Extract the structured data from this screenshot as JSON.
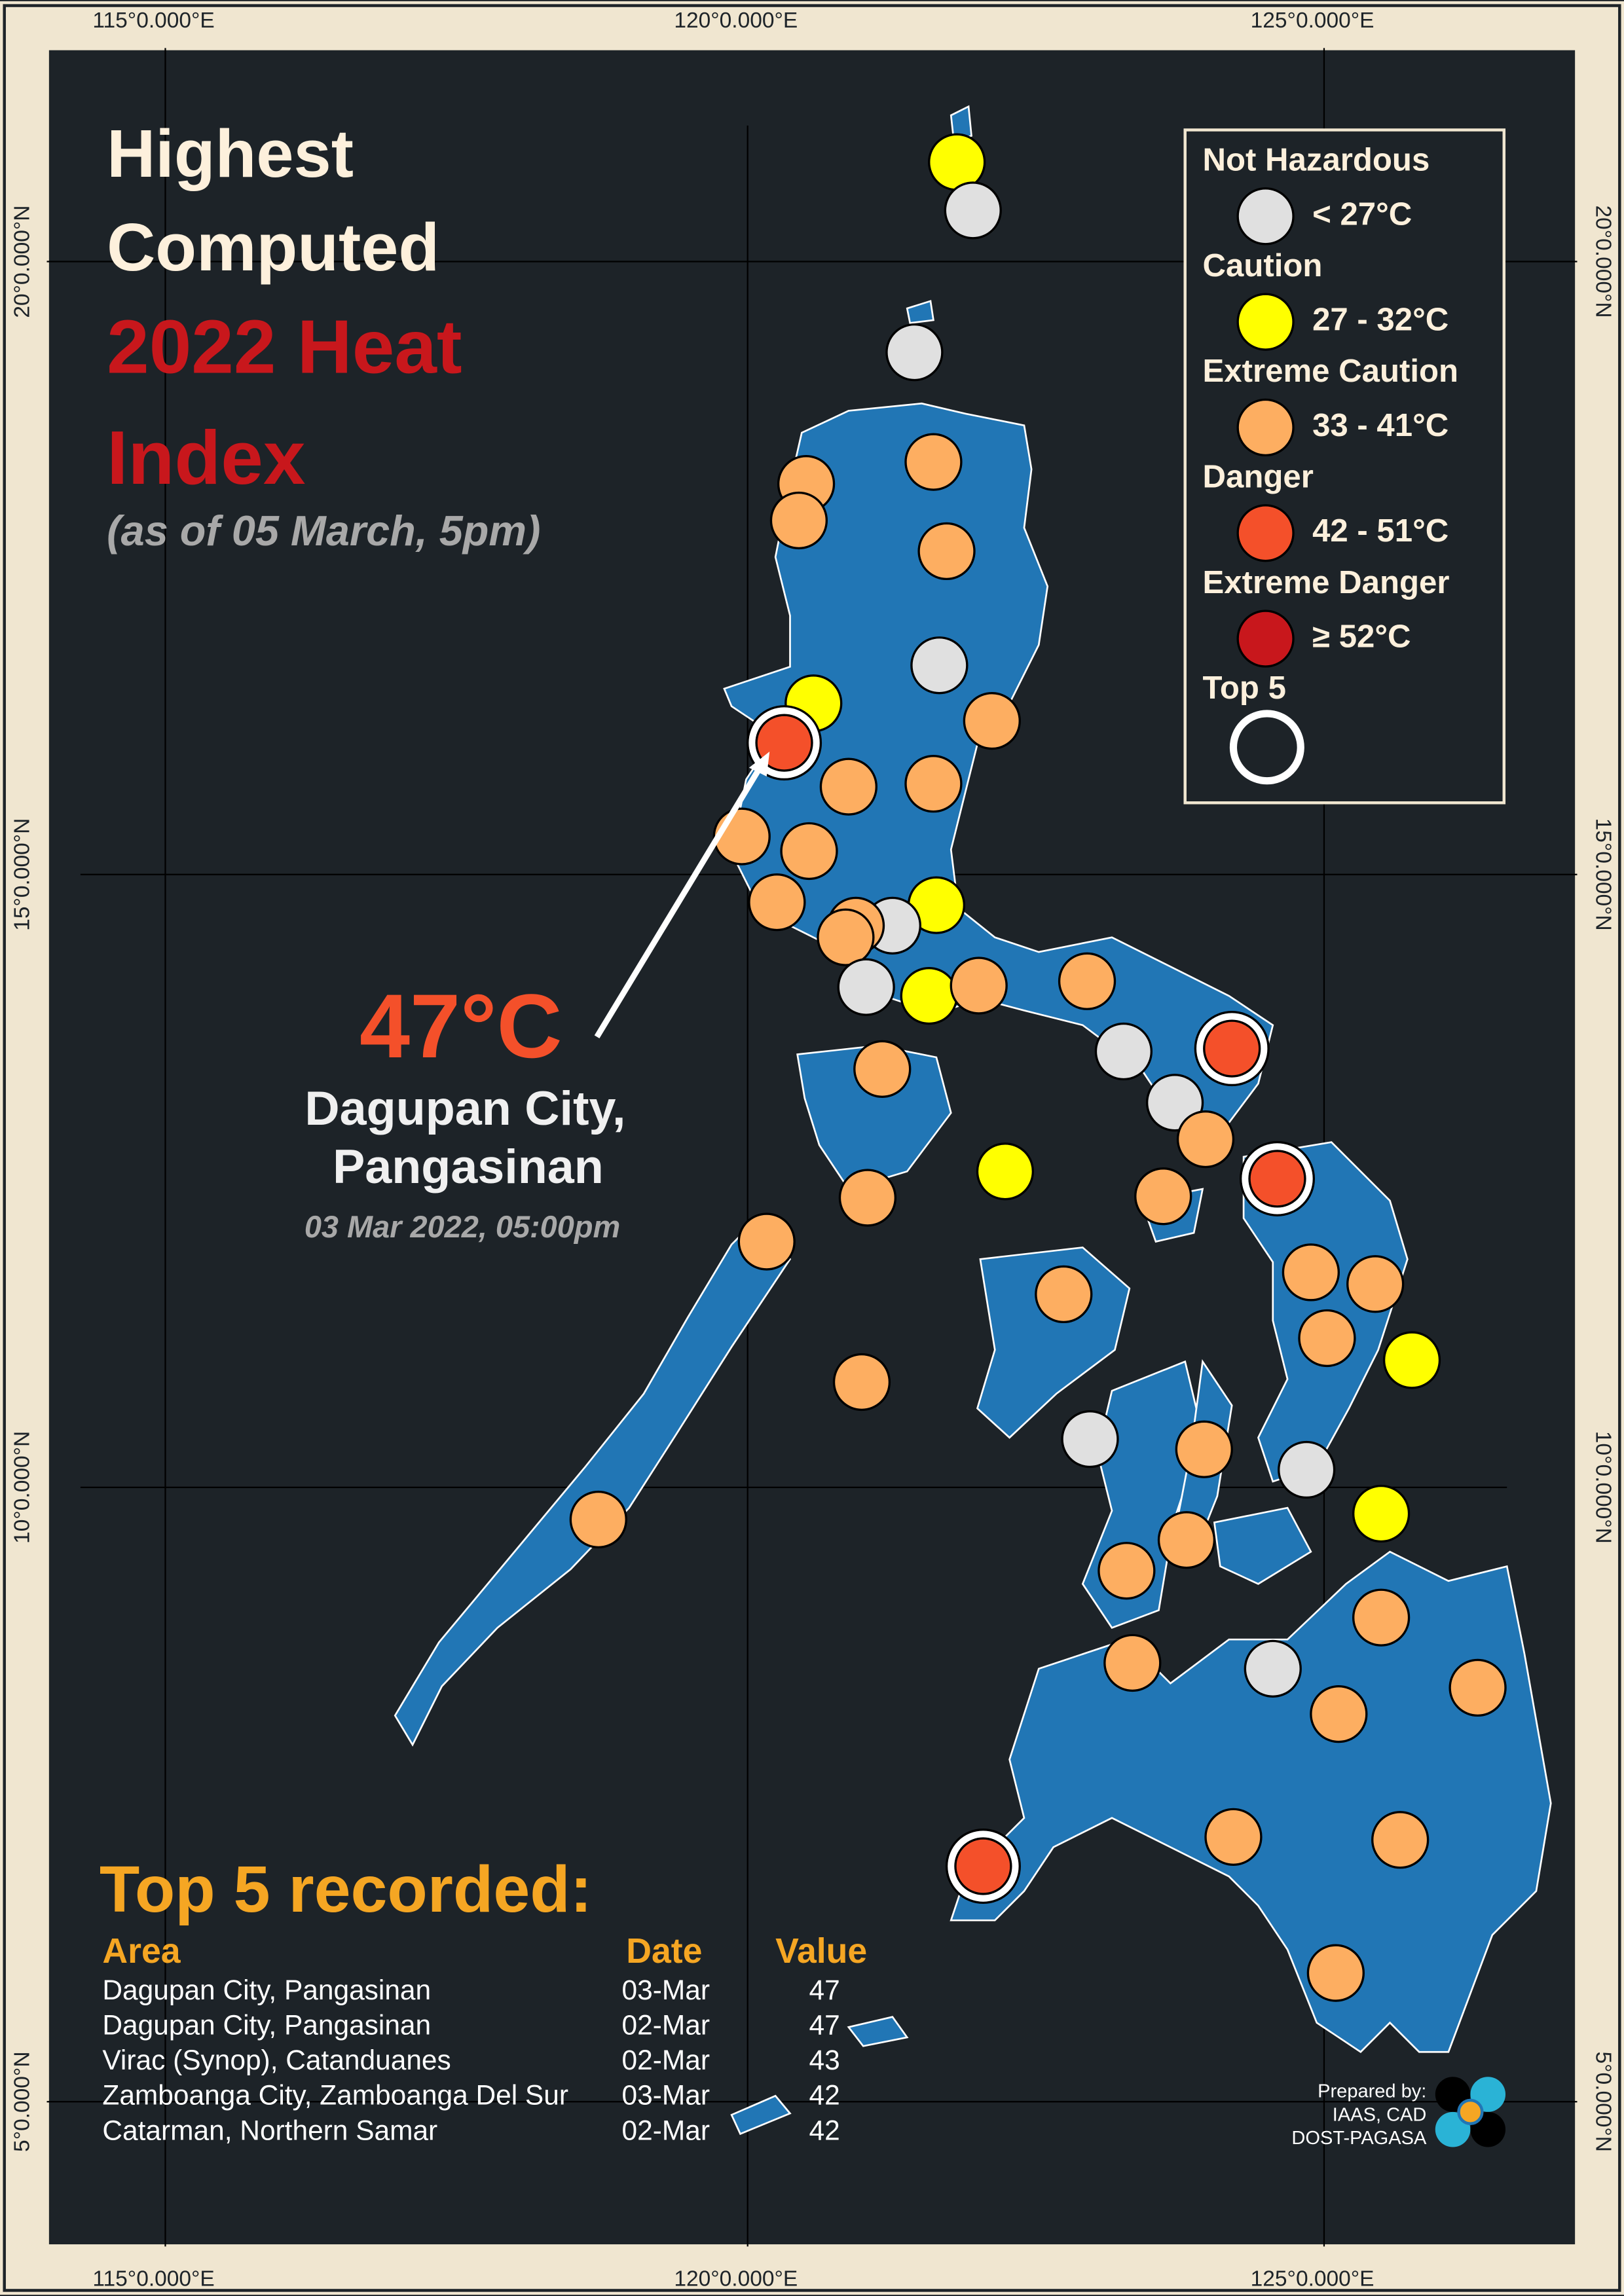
{
  "title": {
    "lines": [
      "Highest",
      "Computed"
    ],
    "highlight": [
      "2022 Heat",
      "Index"
    ],
    "subtitle": "(as of 05 March, 5pm)"
  },
  "axes": {
    "longitude": [
      "115°0.000°E",
      "120°0.000°E",
      "125°0.000°E"
    ],
    "latitude": [
      "20°0.000°N",
      "15°0.000°N",
      "10°0.000°N",
      "5°0.000°N"
    ]
  },
  "legend": {
    "groups": [
      {
        "title": "Not Hazardous",
        "range": "< 27°C",
        "color": "#e0e0e0"
      },
      {
        "title": "Caution",
        "range": "27 - 32°C",
        "color": "#ffff00"
      },
      {
        "title": "Extreme Caution",
        "range": "33 - 41°C",
        "color": "#fdae61"
      },
      {
        "title": "Danger",
        "range": "42 - 51°C",
        "color": "#f4502a"
      },
      {
        "title": "Extreme Danger",
        "range": "≥ 52°C",
        "color": "#c8171c"
      }
    ],
    "top5": "Top 5"
  },
  "annotation": {
    "value": "47°C",
    "place": [
      "Dagupan City,",
      "Pangasinan"
    ],
    "time": "03 Mar 2022, 05:00pm"
  },
  "table": {
    "title": "Top 5 recorded:",
    "headers": [
      "Area",
      "Date",
      "Value"
    ],
    "rows": [
      [
        "Dagupan City, Pangasinan",
        "03-Mar",
        47
      ],
      [
        "Dagupan City, Pangasinan",
        "02-Mar",
        47
      ],
      [
        "Virac (Synop), Catanduanes",
        "02-Mar",
        43
      ],
      [
        "Zamboanga City, Zamboanga Del Sur",
        "03-Mar",
        42
      ],
      [
        "Catarman, Northern Samar",
        "02-Mar",
        42
      ]
    ]
  },
  "credit": [
    "Prepared by:",
    "IAAS, CAD",
    "DOST-PAGASA"
  ]
}
